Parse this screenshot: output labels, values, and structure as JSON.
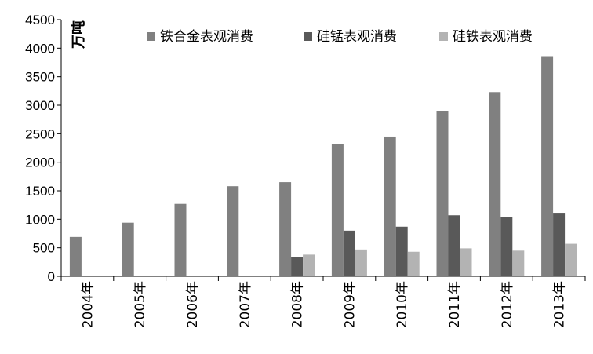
{
  "chart_data": {
    "type": "bar",
    "ylabel": "万吨",
    "ylim": [
      0,
      4500
    ],
    "yticks": [
      0,
      500,
      1000,
      1500,
      2000,
      2500,
      3000,
      3500,
      4000,
      4500
    ],
    "categories": [
      "2004年",
      "2005年",
      "2006年",
      "2007年",
      "2008年",
      "2009年",
      "2010年",
      "2011年",
      "2012年",
      "2013年"
    ],
    "series": [
      {
        "name": "铁合金表观消费",
        "color": "#808080",
        "values": [
          690,
          940,
          1270,
          1580,
          1650,
          2320,
          2450,
          2900,
          3230,
          3860
        ]
      },
      {
        "name": "硅锰表观消费",
        "color": "#595959",
        "values": [
          0,
          0,
          0,
          0,
          340,
          800,
          870,
          1070,
          1040,
          1100
        ]
      },
      {
        "name": "硅铁表观消费",
        "color": "#b3b3b3",
        "values": [
          0,
          0,
          0,
          0,
          380,
          470,
          430,
          490,
          450,
          570
        ]
      }
    ],
    "grid": false,
    "legend": "top"
  }
}
